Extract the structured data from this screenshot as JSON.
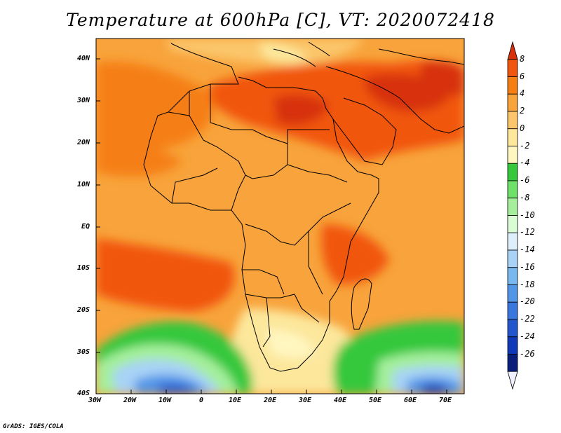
{
  "title": "Temperature at 600hPa [C], VT: 2020072418",
  "credit": "GrADS: IGES/COLA",
  "axes": {
    "lat_labels": [
      "40N",
      "30N",
      "20N",
      "10N",
      "EQ",
      "10S",
      "20S",
      "30S",
      "40S"
    ],
    "lon_labels": [
      "30W",
      "20W",
      "10W",
      "0",
      "10E",
      "20E",
      "30E",
      "40E",
      "50E",
      "60E",
      "70E"
    ]
  },
  "colorbar": {
    "labels": [
      "8",
      "6",
      "4",
      "2",
      "0",
      "-2",
      "-4",
      "-6",
      "-8",
      "-10",
      "-12",
      "-14",
      "-16",
      "-18",
      "-20",
      "-22",
      "-24",
      "-26"
    ],
    "colors": [
      "#d7300b",
      "#f1560f",
      "#f57f12",
      "#f8a33b",
      "#fbc66b",
      "#fce79b",
      "#fff6c0",
      "#35c83d",
      "#6fe06a",
      "#a5ef9c",
      "#dafcd4",
      "#dceffb",
      "#a8d3f6",
      "#79b7ef",
      "#5395e7",
      "#3b76dc",
      "#2355cf",
      "#0f39b8",
      "#0a1f7a",
      "#f0f0ff"
    ]
  }
}
